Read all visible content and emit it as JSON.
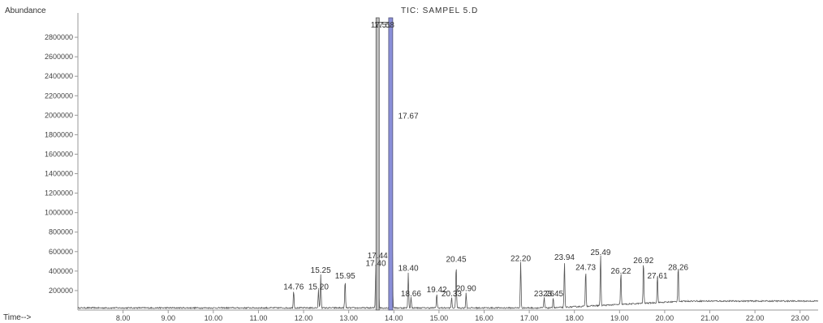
{
  "chart_data": {
    "type": "line",
    "title": "TIC: SAMPEL 5.D",
    "ylabel": "Abundance",
    "xlabel_corner": "Time-->",
    "y_ticks": [
      200000,
      400000,
      600000,
      800000,
      1000000,
      1200000,
      1400000,
      1600000,
      1800000,
      2000000,
      2200000,
      2400000,
      2600000,
      2800000
    ],
    "y_tick_labels": [
      "200000",
      "400000",
      "600000",
      "800000",
      "1000000",
      "1200000",
      "1400000",
      "1600000",
      "1800000",
      "2000000",
      "2200000",
      "2400000",
      "2600000",
      "2800000"
    ],
    "x_ticks": [
      8.0,
      9.0,
      10.0,
      11.0,
      12.0,
      13.0,
      14.0,
      15.0,
      16.0,
      17.0,
      18.0,
      19.0,
      20.0,
      21.0,
      22.0,
      23.0
    ],
    "x_tick_labels": [
      "8.00",
      "9.00",
      "10.00",
      "11.00",
      "12.00",
      "13.00",
      "14.00",
      "15.00",
      "16.00",
      "17.00",
      "18.00",
      "19.00",
      "20.00",
      "21.00",
      "22.00",
      "23.00"
    ],
    "xlim": [
      7.0,
      23.4
    ],
    "ylim": [
      0,
      3000000
    ],
    "grid": false,
    "colors": {
      "trace": "#555555",
      "highlight": "#8a8fd8",
      "axis": "#999999"
    },
    "peaks": [
      {
        "label": "14.76",
        "x": 11.78,
        "y": 180000
      },
      {
        "label": "15.20",
        "x": 12.33,
        "y": 180000
      },
      {
        "label": "15.25",
        "x": 12.38,
        "y": 350000
      },
      {
        "label": "15.95",
        "x": 12.92,
        "y": 290000
      },
      {
        "label": "17.40",
        "x": 13.6,
        "y": 420000
      },
      {
        "label": "17.44",
        "x": 13.64,
        "y": 500000
      },
      {
        "label": "17.51",
        "x": 13.64,
        "y": 3000000
      },
      {
        "label": "17.58",
        "x": 13.93,
        "y": 3000000
      },
      {
        "label": "17.67",
        "x": 13.95,
        "y": 2000000
      },
      {
        "label": "18.40",
        "x": 14.32,
        "y": 370000
      },
      {
        "label": "18.66",
        "x": 14.38,
        "y": 110000
      },
      {
        "label": "19.42",
        "x": 14.95,
        "y": 150000
      },
      {
        "label": "20.33",
        "x": 15.28,
        "y": 110000
      },
      {
        "label": "20.45",
        "x": 15.38,
        "y": 460000
      },
      {
        "label": "20.90",
        "x": 15.6,
        "y": 160000
      },
      {
        "label": "22.20",
        "x": 16.81,
        "y": 470000
      },
      {
        "label": "23.26",
        "x": 17.33,
        "y": 110000
      },
      {
        "label": "23.45",
        "x": 17.53,
        "y": 110000
      },
      {
        "label": "23.94",
        "x": 17.78,
        "y": 480000
      },
      {
        "label": "24.73",
        "x": 18.25,
        "y": 380000
      },
      {
        "label": "25.49",
        "x": 18.58,
        "y": 530000
      },
      {
        "label": "26.22",
        "x": 19.03,
        "y": 340000
      },
      {
        "label": "26.92",
        "x": 19.53,
        "y": 450000
      },
      {
        "label": "27.61",
        "x": 19.84,
        "y": 290000
      },
      {
        "label": "28.26",
        "x": 20.3,
        "y": 380000
      }
    ]
  }
}
